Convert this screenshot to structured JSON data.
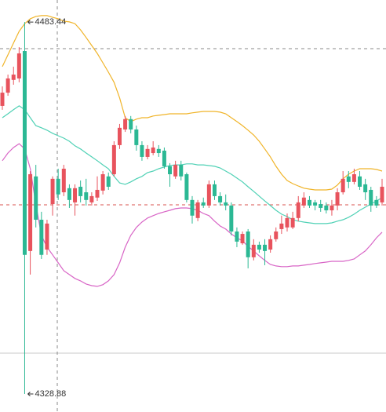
{
  "chart_data": {
    "type": "candlestick",
    "open": [
      4448.6,
      4454.1,
      4459.4,
      4460.0,
      4471.4,
      4388.3,
      4419.3,
      4401.3,
      4388.9,
      4407.8,
      4418.3,
      4412.7,
      4414.4,
      4408.5,
      4415.0,
      4412.7,
      4408.5,
      4410.5,
      4413.4,
      4419.3,
      4420.2,
      4432.3,
      4438.8,
      4443.1,
      4438.8,
      4432.3,
      4427.4,
      4429.0,
      4430.7,
      4430.0,
      4423.5,
      4419.3,
      4424.1,
      4420.2,
      4409.5,
      4402.0,
      4408.5,
      4407.2,
      4416.0,
      4411.1,
      4408.5,
      4407.2,
      4396.4,
      4391.5,
      4396.4,
      4385.7,
      4390.9,
      4390.9,
      4388.9,
      4393.2,
      4397.4,
      4398.1,
      4398.1,
      4402.0,
      4407.2,
      4409.5,
      4408.5,
      4407.8,
      4407.2,
      4405.2,
      4407.2,
      4412.7,
      4419.3,
      4417.0,
      4419.3,
      4416.0,
      4413.7,
      4409.5,
      4408.5
    ],
    "high": [
      4456.7,
      4461.6,
      4464.9,
      4473.0,
      4483.44,
      4421.5,
      4424.1,
      4404.6,
      4401.3,
      4419.3,
      4422.5,
      4424.1,
      4416.0,
      4416.0,
      4417.6,
      4418.3,
      4412.7,
      4419.3,
      4421.5,
      4420.9,
      4433.9,
      4441.1,
      4444.4,
      4444.4,
      4440.4,
      4433.9,
      4432.3,
      4433.9,
      4432.3,
      4431.3,
      4424.8,
      4425.8,
      4425.8,
      4420.9,
      4411.1,
      4409.5,
      4410.5,
      4417.6,
      4417.6,
      4412.7,
      4411.8,
      4408.5,
      4398.1,
      4396.4,
      4397.4,
      4393.2,
      4392.2,
      4393.2,
      4394.8,
      4398.1,
      4403.0,
      4403.9,
      4404.6,
      4411.1,
      4412.7,
      4411.1,
      4409.5,
      4409.5,
      4408.5,
      4409.5,
      4414.4,
      4421.5,
      4421.5,
      4422.5,
      4421.5,
      4418.3,
      4415.0,
      4411.1,
      4418.3
    ],
    "low": [
      4447.0,
      4452.8,
      4457.4,
      4458.4,
      4328.88,
      4378.5,
      4398.1,
      4385.0,
      4386.7,
      4403.0,
      4409.5,
      4411.1,
      4406.2,
      4403.0,
      4408.5,
      4407.2,
      4407.2,
      4409.1,
      4411.8,
      4413.7,
      4419.3,
      4430.7,
      4437.8,
      4437.2,
      4430.0,
      4425.8,
      4426.4,
      4428.1,
      4427.4,
      4422.5,
      4415.0,
      4418.3,
      4417.6,
      4408.5,
      4399.7,
      4400.7,
      4406.2,
      4406.2,
      4409.5,
      4407.2,
      4405.2,
      4394.8,
      4389.9,
      4390.9,
      4381.1,
      4384.4,
      4387.6,
      4382.4,
      4387.6,
      4392.2,
      4395.4,
      4396.4,
      4397.4,
      4400.7,
      4406.2,
      4406.2,
      4405.2,
      4404.6,
      4403.9,
      4403.0,
      4405.2,
      4411.8,
      4414.4,
      4416.0,
      4413.7,
      4409.5,
      4404.6,
      4406.2,
      4407.2
    ],
    "close": [
      4454.1,
      4460.0,
      4461.6,
      4470.4,
      4386.7,
      4420.2,
      4401.3,
      4386.7,
      4399.7,
      4418.3,
      4411.8,
      4422.5,
      4409.5,
      4414.4,
      4411.1,
      4409.5,
      4411.1,
      4413.7,
      4420.2,
      4415.0,
      4432.3,
      4439.5,
      4443.1,
      4438.8,
      4432.3,
      4427.4,
      4430.7,
      4431.3,
      4429.0,
      4423.5,
      4420.2,
      4424.1,
      4419.3,
      4409.5,
      4403.0,
      4408.5,
      4407.2,
      4416.0,
      4411.1,
      4408.5,
      4407.2,
      4396.4,
      4392.2,
      4395.4,
      4385.7,
      4390.9,
      4388.9,
      4388.3,
      4393.2,
      4396.4,
      4399.7,
      4402.0,
      4402.0,
      4408.5,
      4410.5,
      4407.2,
      4407.2,
      4406.2,
      4405.2,
      4407.2,
      4412.7,
      4418.3,
      4417.0,
      4420.2,
      4415.0,
      4412.7,
      4407.2,
      4407.2,
      4415.0
    ],
    "up_color": "#e8535d",
    "down_color": "#2bb894",
    "series": [
      {
        "color": "#f0b429",
        "values": [
          4464.9,
          4469.8,
          4474.7,
          4479.6,
          4482.8,
          4484.8,
          4485.8,
          4486.1,
          4486.1,
          4485.4,
          4484.8,
          4483.8,
          4483.5,
          4482.8,
          4480.2,
          4477.0,
          4473.7,
          4470.4,
          4466.5,
          4462.6,
          4458.4,
          4451.9,
          4443.7,
          4442.1,
          4443.1,
          4443.7,
          4443.7,
          4444.4,
          4444.7,
          4445.0,
          4445.3,
          4445.3,
          4445.3,
          4445.3,
          4445.7,
          4446.0,
          4446.3,
          4446.3,
          4446.3,
          4446.0,
          4445.3,
          4443.7,
          4442.1,
          4440.4,
          4438.5,
          4436.5,
          4433.9,
          4430.7,
          4427.4,
          4423.5,
          4420.2,
          4417.6,
          4416.3,
          4415.3,
          4414.4,
          4414.0,
          4413.7,
          4413.7,
          4413.7,
          4414.0,
          4415.7,
          4418.3,
          4420.2,
          4421.5,
          4422.5,
          4422.5,
          4422.5,
          4422.2,
          4421.5
        ]
      },
      {
        "color": "#4fd1b5",
        "values": [
          4443.7,
          4445.3,
          4447.0,
          4448.6,
          4447.0,
          4443.7,
          4440.4,
          4439.5,
          4438.5,
          4437.2,
          4436.2,
          4435.2,
          4433.9,
          4432.0,
          4430.7,
          4429.0,
          4427.4,
          4425.8,
          4424.1,
          4422.5,
          4419.3,
          4416.6,
          4416.0,
          4417.0,
          4418.3,
          4419.3,
          4420.9,
          4421.5,
          4422.5,
          4423.2,
          4423.8,
          4424.1,
          4424.1,
          4424.5,
          4424.5,
          4424.1,
          4424.1,
          4423.8,
          4423.5,
          4422.8,
          4421.5,
          4420.2,
          4418.6,
          4417.0,
          4415.0,
          4413.1,
          4411.1,
          4409.1,
          4407.2,
          4405.2,
          4403.6,
          4402.6,
          4401.3,
          4400.7,
          4400.3,
          4400.0,
          4399.7,
          4399.7,
          4399.7,
          4400.0,
          4400.7,
          4401.3,
          4402.3,
          4403.6,
          4405.2,
          4406.5,
          4407.8,
          4409.1,
          4410.5
        ]
      },
      {
        "color": "#d865c6",
        "values": [
          4425.8,
          4429.0,
          4431.3,
          4432.9,
          4430.7,
          4422.5,
          4407.8,
          4394.8,
          4389.9,
          4386.7,
          4383.4,
          4380.1,
          4378.5,
          4376.9,
          4375.9,
          4374.6,
          4373.9,
          4373.6,
          4374.3,
          4375.9,
          4378.5,
          4383.4,
          4389.9,
          4394.8,
          4398.1,
          4400.3,
          4402.0,
          4403.0,
          4403.9,
          4404.6,
          4405.2,
          4405.9,
          4406.2,
          4406.2,
          4405.9,
          4405.2,
          4403.9,
          4403.0,
          4400.7,
          4398.7,
          4397.4,
          4395.4,
          4393.8,
          4392.5,
          4390.2,
          4388.3,
          4386.3,
          4384.4,
          4382.7,
          4382.1,
          4381.8,
          4381.8,
          4382.1,
          4382.1,
          4382.4,
          4382.7,
          4383.1,
          4383.4,
          4383.7,
          4384.0,
          4384.0,
          4384.0,
          4384.4,
          4385.0,
          4386.7,
          4388.3,
          4390.9,
          4393.8,
          4396.1
        ]
      }
    ],
    "max_label": 4483.44,
    "min_label": 4328.88,
    "ylim": [
      4321.4,
      4492.6
    ]
  }
}
